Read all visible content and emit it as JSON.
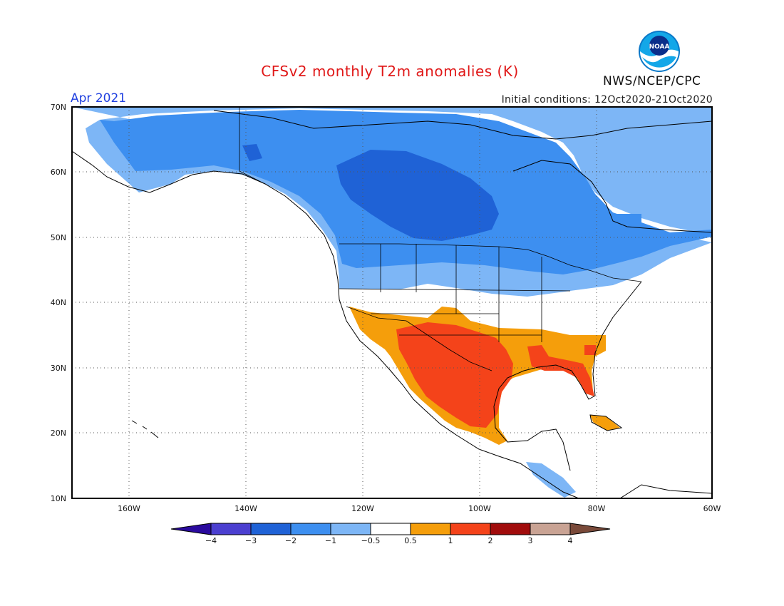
{
  "header": {
    "title": "CFSv2 monthly T2m anomalies (K)",
    "valid_month": "Apr 2021",
    "initial_conditions": "Initial conditions: 12Oct2020-21Oct2020",
    "agency": "NWS/NCEP/CPC",
    "logo_text": "NOAA"
  },
  "axes": {
    "lat_labels": [
      "70N",
      "60N",
      "50N",
      "40N",
      "30N",
      "20N",
      "10N"
    ],
    "lon_labels": [
      "160W",
      "140W",
      "120W",
      "100W",
      "80W",
      "60W"
    ]
  },
  "colorbar": {
    "tick_labels": [
      "-4",
      "-3",
      "-2",
      "-1",
      "-0.5",
      "0.5",
      "1",
      "2",
      "3",
      "4"
    ],
    "colors": [
      "#2a0a9e",
      "#4b3fd0",
      "#1f62d6",
      "#3d8ff0",
      "#7db6f6",
      "#ffffff",
      "#f59e0b",
      "#f4431a",
      "#a10c0c",
      "#c9a394",
      "#7a4a3a"
    ]
  },
  "colors": {
    "strong_cold": "#1f62d6",
    "cold": "#3d8ff0",
    "cool": "#7db6f6",
    "warm": "#f59e0b",
    "hot": "#f4431a",
    "title": "#e01818",
    "month": "#2040e0"
  }
}
